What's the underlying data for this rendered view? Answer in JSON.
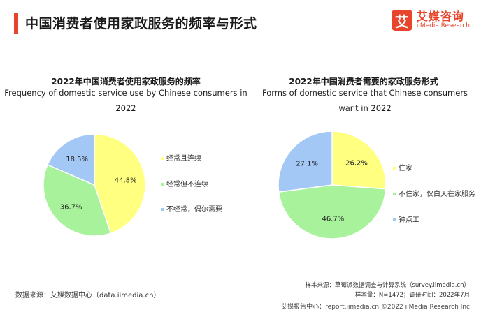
{
  "header": {
    "title": "中国消费者使用家政服务的频率与形式",
    "brand_cn": "艾媒咨询",
    "brand_en": "iiMedia Research",
    "brand_mark": "艾"
  },
  "chart_data": [
    {
      "type": "pie",
      "title": "2022年中国消费者使用家政服务的频率",
      "subtitle": "Frequency of domestic service use by Chinese consumers in 2022",
      "categories": [
        "经常且连续",
        "经常但不连续",
        "不经常，偶尔需要"
      ],
      "values": [
        44.8,
        36.7,
        18.5
      ],
      "labels": [
        "44.8%",
        "36.7%",
        "18.5%"
      ],
      "colors": [
        "#ffff80",
        "#a8f29c",
        "#a4c8f5"
      ],
      "legend": "right"
    },
    {
      "type": "pie",
      "title": "2022年中国消费者需要的家政服务形式",
      "subtitle": "Forms of domestic service that Chinese consumers want in 2022",
      "categories": [
        "住家",
        "不住家，仅白天在家服务",
        "钟点工"
      ],
      "values": [
        26.2,
        46.7,
        27.1
      ],
      "labels": [
        "26.2%",
        "46.7%",
        "27.1%"
      ],
      "colors": [
        "#ffff80",
        "#a8f29c",
        "#a4c8f5"
      ],
      "legend": "right"
    }
  ],
  "footer": {
    "source_left": "数据来源：艾媒数据中心（data.iimedia.cn）",
    "source_right": "样本来源：草莓派数据调查与计算系统（survey.iimedia.cn）",
    "sample": "样本量：N=1472；调研时间：2022年7月",
    "bottom": "艾媒报告中心：report.iimedia.cn ©2022 iiMedia Research Inc"
  }
}
